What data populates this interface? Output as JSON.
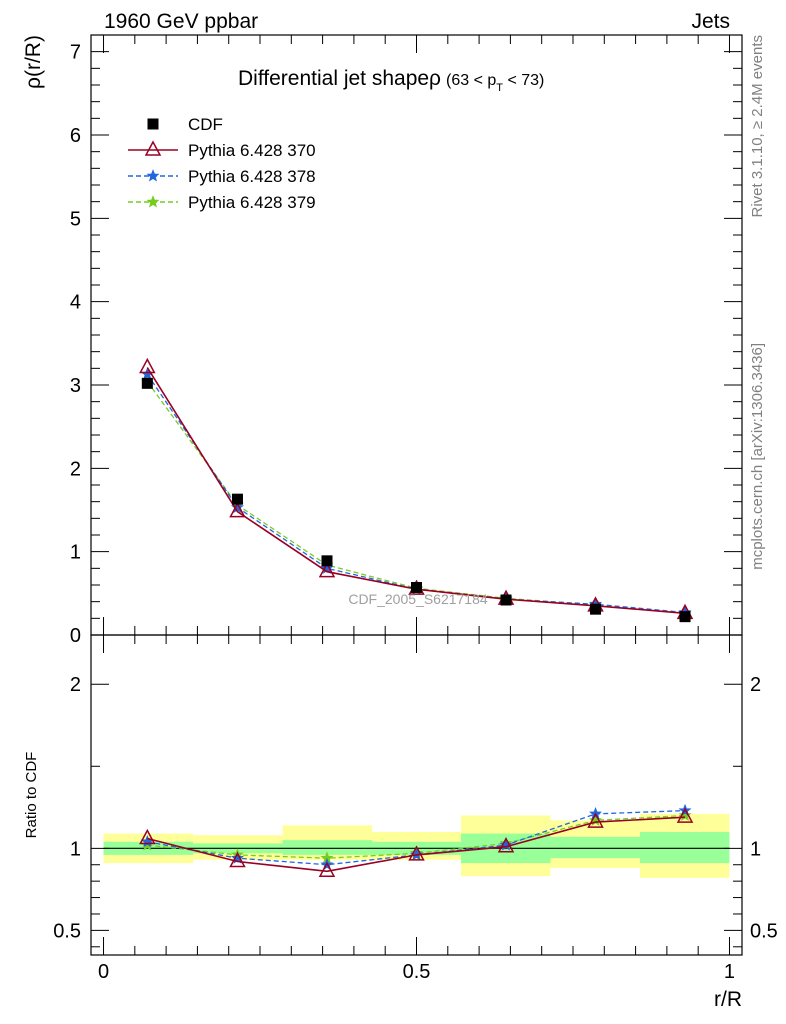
{
  "header": {
    "left": "1960 GeV ppbar",
    "right": "Jets"
  },
  "side_labels": {
    "rivet": "Rivet 3.1.10, ≥ 2.4M events",
    "mcplots": "mcplots.cern.ch [arXiv:1306.3436]"
  },
  "watermark": "CDF_2005_S6217184",
  "chart_data": {
    "type": "line",
    "title_main": "Differential jet shapeρ",
    "title_sub_open": "(63 < p",
    "title_sub_T": "T",
    "title_sub_close": " < 73)",
    "ylabel": "ρ(r/R)",
    "xlabel": "r/R",
    "ratio_ylabel": "Ratio to CDF",
    "x": [
      0.07,
      0.214,
      0.357,
      0.5,
      0.643,
      0.786,
      0.929
    ],
    "x_ticks": [
      "0",
      "0.5",
      "1"
    ],
    "y_ticks": [
      "0",
      "1",
      "2",
      "3",
      "4",
      "5",
      "6",
      "7"
    ],
    "ratio_ticks": [
      "0.5",
      "1",
      "2"
    ],
    "xlim": [
      -0.02,
      1.02
    ],
    "ylim": [
      0,
      7.2
    ],
    "ratio_ylim": [
      0.35,
      2.3
    ],
    "series": [
      {
        "name": "CDF",
        "color": "#000000",
        "marker": "square",
        "values": [
          3.02,
          1.63,
          0.89,
          0.57,
          0.42,
          0.31,
          0.22
        ]
      },
      {
        "name": "Pythia 6.428 370",
        "color": "#990022",
        "marker": "triangle",
        "dash": "solid",
        "values": [
          3.21,
          1.48,
          0.76,
          0.55,
          0.43,
          0.35,
          0.26
        ],
        "ratio": [
          1.06,
          0.92,
          0.86,
          0.96,
          1.01,
          1.16,
          1.19
        ]
      },
      {
        "name": "Pythia 6.428 378",
        "color": "#2266dd",
        "marker": "star",
        "dash": "dashed",
        "values": [
          3.13,
          1.53,
          0.8,
          0.55,
          0.43,
          0.37,
          0.27
        ],
        "ratio": [
          1.04,
          0.94,
          0.9,
          0.96,
          1.02,
          1.21,
          1.23
        ]
      },
      {
        "name": "Pythia 6.428 379",
        "color": "#77cc22",
        "marker": "star",
        "dash": "dashed",
        "values": [
          3.04,
          1.56,
          0.84,
          0.56,
          0.44,
          0.36,
          0.26
        ],
        "ratio": [
          1.02,
          0.96,
          0.94,
          0.97,
          1.03,
          1.17,
          1.2
        ]
      }
    ],
    "bands": [
      {
        "x0": 0.0,
        "x1": 0.143,
        "inner": [
          0.96,
          1.04
        ],
        "outer": [
          0.91,
          1.09
        ]
      },
      {
        "x0": 0.143,
        "x1": 0.286,
        "inner": [
          0.97,
          1.03
        ],
        "outer": [
          0.93,
          1.08
        ]
      },
      {
        "x0": 0.286,
        "x1": 0.429,
        "inner": [
          0.96,
          1.05
        ],
        "outer": [
          0.93,
          1.14
        ]
      },
      {
        "x0": 0.429,
        "x1": 0.571,
        "inner": [
          0.96,
          1.04
        ],
        "outer": [
          0.93,
          1.1
        ]
      },
      {
        "x0": 0.571,
        "x1": 0.714,
        "inner": [
          0.91,
          1.09
        ],
        "outer": [
          0.83,
          1.2
        ]
      },
      {
        "x0": 0.714,
        "x1": 0.857,
        "inner": [
          0.94,
          1.07
        ],
        "outer": [
          0.88,
          1.17
        ]
      },
      {
        "x0": 0.857,
        "x1": 1.0,
        "inner": [
          0.91,
          1.1
        ],
        "outer": [
          0.82,
          1.21
        ]
      }
    ]
  }
}
